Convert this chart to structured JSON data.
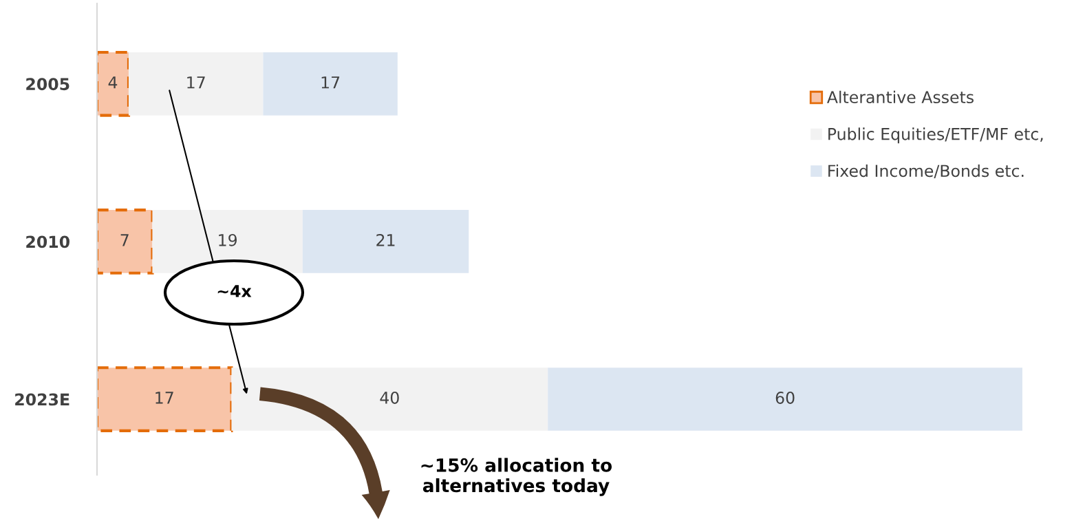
{
  "chart_data": {
    "type": "bar",
    "orientation": "horizontal",
    "stacked": true,
    "categories": [
      "2005",
      "2010",
      "2023E"
    ],
    "series": [
      {
        "name": "Alterantive Assets",
        "color": "#f8c4a8",
        "values": [
          4,
          7,
          17
        ]
      },
      {
        "name": "Public Equities/ETF/MF etc,",
        "color": "#f2f2f2",
        "values": [
          17,
          19,
          40
        ]
      },
      {
        "name": "Fixed Income/Bonds etc.",
        "color": "#dce6f2",
        "values": [
          17,
          21,
          60
        ]
      }
    ],
    "tick_labels": "y",
    "data_labels": true,
    "legend": "right",
    "grid": false,
    "annotations": [
      "~4x",
      "~15% allocation to alternatives today"
    ]
  }
}
